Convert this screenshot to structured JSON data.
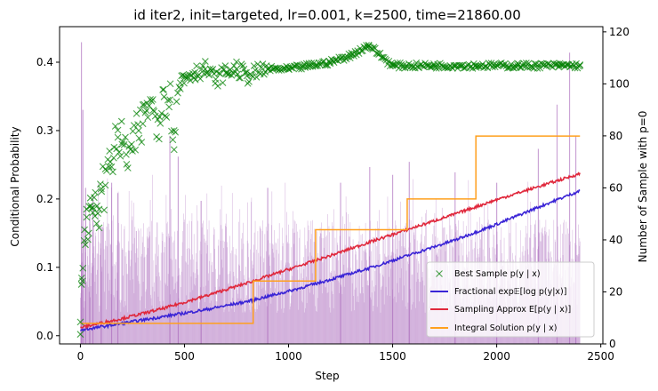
{
  "chart_data": {
    "type": "line",
    "title": "id iter2, init=targeted, lr=0.001, k=2500, time=21860.00",
    "xlabel": "Step",
    "ylabel": "Conditional Probability",
    "y2label": "Number of Sample with p=0",
    "xlim": [
      -100,
      2510
    ],
    "ylim": [
      -0.012,
      0.452
    ],
    "y2lim": [
      0,
      122
    ],
    "x_ticks": [
      "0",
      "500",
      "1000",
      "1500",
      "2000",
      "2500"
    ],
    "y_ticks": [
      "0.0",
      "0.1",
      "0.2",
      "0.3",
      "0.4"
    ],
    "y2_ticks": [
      "0",
      "20",
      "40",
      "60",
      "80",
      "100",
      "120"
    ],
    "x_tick_values": [
      0,
      500,
      1000,
      1500,
      2000,
      2500
    ],
    "y_tick_values": [
      0.0,
      0.1,
      0.2,
      0.3,
      0.4
    ],
    "y2_tick_values": [
      0,
      20,
      40,
      60,
      80,
      100,
      120
    ],
    "colors": {
      "best_sample": "#008000",
      "fractional": "#3a24d6",
      "sampling": "#e0283c",
      "integral": "#ffa01e",
      "bars": "#a05ab4",
      "y2label": "#800080"
    },
    "legend_placement": "lower-right",
    "series": [
      {
        "name": "Best Sample $p(y\\mid x)$",
        "legend": "Best Sample p(y | x)",
        "marker": "x",
        "color": "#008000",
        "points": [
          [
            0,
            0.02
          ],
          [
            5,
            0.075
          ],
          [
            10,
            0.08
          ],
          [
            20,
            0.155
          ],
          [
            30,
            0.185
          ],
          [
            40,
            0.15
          ],
          [
            50,
            0.19
          ],
          [
            60,
            0.18
          ],
          [
            70,
            0.175
          ],
          [
            80,
            0.19
          ],
          [
            90,
            0.185
          ],
          [
            100,
            0.215
          ],
          [
            120,
            0.22
          ],
          [
            140,
            0.27
          ],
          [
            160,
            0.26
          ],
          [
            180,
            0.29
          ],
          [
            200,
            0.28
          ],
          [
            220,
            0.265
          ],
          [
            250,
            0.27
          ],
          [
            280,
            0.3
          ],
          [
            300,
            0.31
          ],
          [
            320,
            0.34
          ],
          [
            350,
            0.33
          ],
          [
            380,
            0.32
          ],
          [
            400,
            0.36
          ],
          [
            430,
            0.345
          ],
          [
            450,
            0.3
          ],
          [
            480,
            0.37
          ],
          [
            500,
            0.38
          ],
          [
            550,
            0.385
          ],
          [
            600,
            0.39
          ],
          [
            650,
            0.375
          ],
          [
            700,
            0.385
          ],
          [
            750,
            0.39
          ],
          [
            800,
            0.38
          ],
          [
            900,
            0.39
          ],
          [
            1000,
            0.39
          ],
          [
            1100,
            0.395
          ],
          [
            1200,
            0.4
          ],
          [
            1300,
            0.41
          ],
          [
            1385,
            0.425
          ],
          [
            1500,
            0.395
          ],
          [
            1700,
            0.395
          ],
          [
            1900,
            0.395
          ],
          [
            2100,
            0.395
          ],
          [
            2300,
            0.395
          ],
          [
            2400,
            0.395
          ]
        ]
      },
      {
        "name": "Fractional $\\exp\\mathbb{E}[\\log p(y|x)]$",
        "legend": "Fractional exp𝔼[log p(y|x)]",
        "color": "#3a24d6",
        "x": [
          0,
          200,
          400,
          600,
          800,
          1000,
          1200,
          1400,
          1600,
          1800,
          2000,
          2200,
          2400
        ],
        "values": [
          0.008,
          0.018,
          0.028,
          0.038,
          0.05,
          0.065,
          0.082,
          0.1,
          0.12,
          0.14,
          0.163,
          0.188,
          0.212
        ]
      },
      {
        "name": "Sampling Approx $E[p(y\\mid x)]$",
        "legend": "Sampling Approx E[p(y | x)]",
        "color": "#e0283c",
        "x": [
          0,
          200,
          400,
          600,
          800,
          1000,
          1200,
          1400,
          1600,
          1800,
          2000,
          2200,
          2400
        ],
        "values": [
          0.012,
          0.025,
          0.04,
          0.058,
          0.077,
          0.097,
          0.117,
          0.138,
          0.158,
          0.178,
          0.199,
          0.218,
          0.237
        ]
      },
      {
        "name": "Integral Solution $p(y\\mid x)$",
        "legend": "Integral Solution p(y | x)",
        "color": "#ffa01e",
        "step": true,
        "x": [
          0,
          830,
          1130,
          1570,
          1900,
          2400
        ],
        "values": [
          0.018,
          0.08,
          0.155,
          0.2,
          0.292,
          0.292
        ]
      },
      {
        "name": "Number of Sample with p=0",
        "axis": "right",
        "type": "bar",
        "color": "#a05ab4",
        "x_range": [
          0,
          2400
        ],
        "baseline": 40,
        "spike_max": 116,
        "spikes": [
          [
            5,
            116
          ],
          [
            12,
            90
          ],
          [
            25,
            60
          ],
          [
            45,
            50
          ],
          [
            60,
            57
          ],
          [
            100,
            45
          ],
          [
            150,
            62
          ],
          [
            180,
            58
          ],
          [
            430,
            80
          ],
          [
            470,
            72
          ],
          [
            580,
            55
          ],
          [
            900,
            60
          ],
          [
            1250,
            62
          ],
          [
            1390,
            68
          ],
          [
            1500,
            65
          ],
          [
            1580,
            70
          ],
          [
            1800,
            66
          ],
          [
            2000,
            62
          ],
          [
            2200,
            75
          ],
          [
            2290,
            92
          ],
          [
            2350,
            112
          ],
          [
            2380,
            80
          ]
        ]
      }
    ]
  }
}
